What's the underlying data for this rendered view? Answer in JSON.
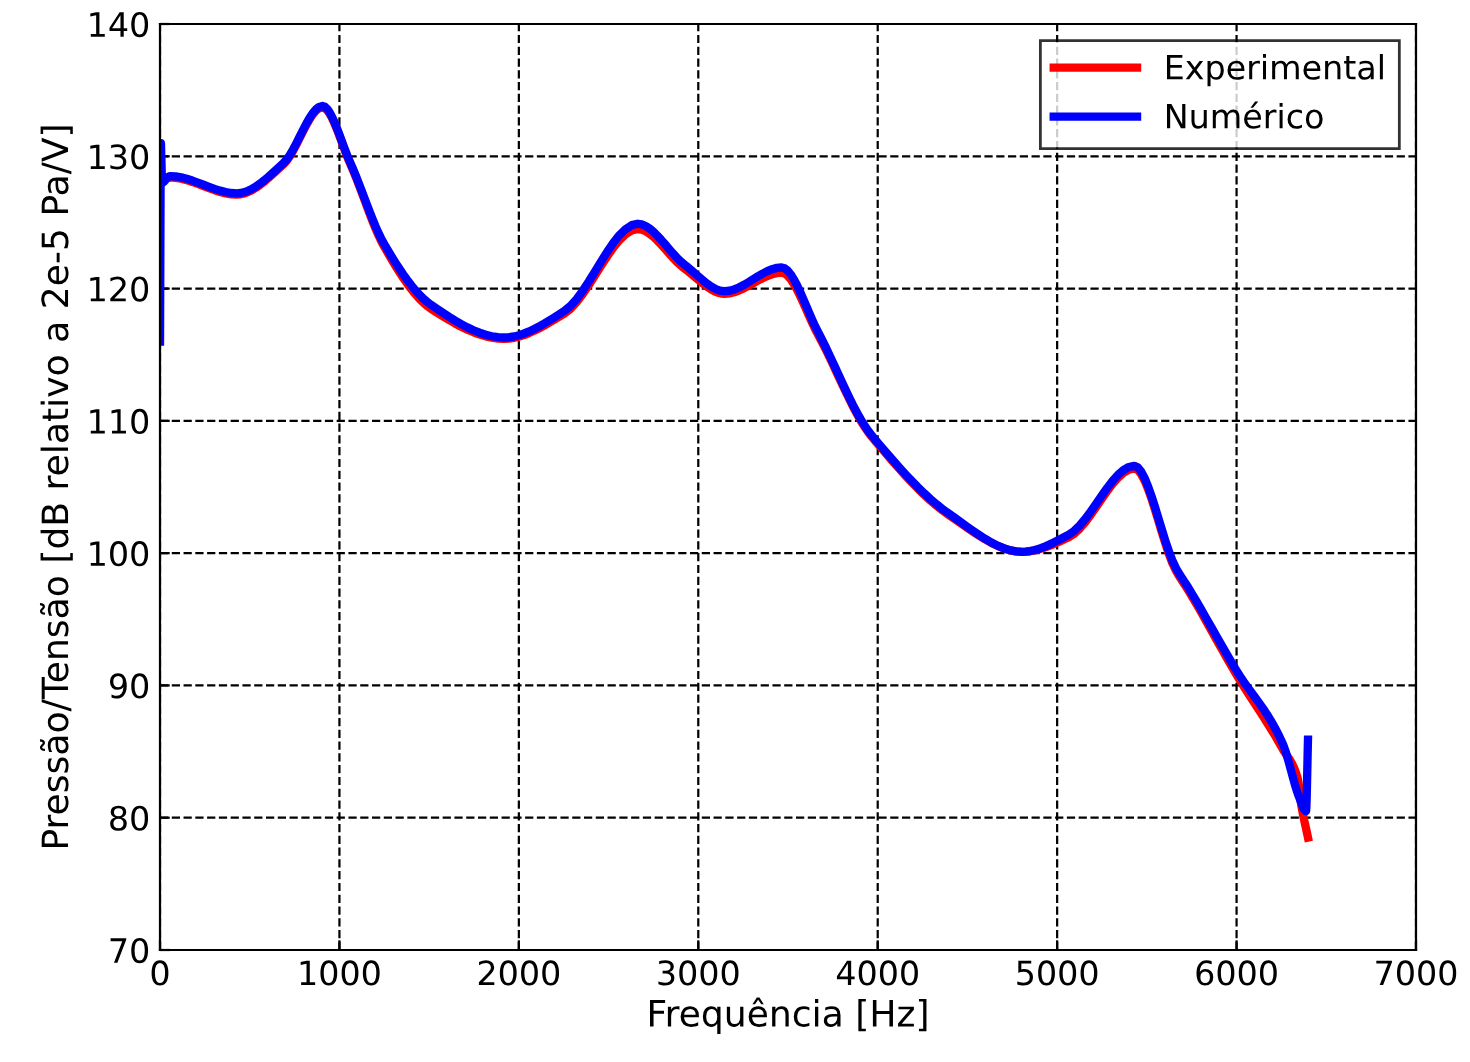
{
  "chart_data": {
    "type": "line",
    "xlabel": "Frequência [Hz]",
    "ylabel": "Pressão/Tensão [dB relativo a 2e-5 Pa/V]",
    "xlim": [
      0,
      7000
    ],
    "ylim": [
      70,
      140
    ],
    "xticks": [
      0,
      1000,
      2000,
      3000,
      4000,
      5000,
      6000,
      7000
    ],
    "yticks": [
      70,
      80,
      90,
      100,
      110,
      120,
      130,
      140
    ],
    "grid": true,
    "legend": "top right",
    "marker": "none",
    "series": [
      {
        "name": "Experimental",
        "color": "#ff0000",
        "x": [
          0,
          5,
          10,
          56,
          428,
          689,
          905,
          1061,
          1248,
          1508,
          1918,
          2253,
          2663,
          2924,
          3147,
          3464,
          3668,
          3929,
          3985,
          4395,
          4804,
          5065,
          5430,
          5661,
          5735,
          5996,
          6257,
          6340,
          6360,
          6398
        ],
        "values": [
          128,
          130,
          128.3,
          128.4,
          127.1,
          129.4,
          133.7,
          129.4,
          123.2,
          118.5,
          116.2,
          118.1,
          124.5,
          121.5,
          119.6,
          121.2,
          116.5,
          109.5,
          108.5,
          102.9,
          100.1,
          101.2,
          106.4,
          98.7,
          97.1,
          90.9,
          85.2,
          83,
          81,
          78.5
        ]
      },
      {
        "name": "Numérico",
        "color": "#0000ff",
        "x": [
          0,
          5,
          10,
          56,
          428,
          689,
          905,
          1061,
          1248,
          1508,
          1918,
          2253,
          2663,
          2924,
          3147,
          3464,
          3668,
          3929,
          3985,
          4395,
          4804,
          5065,
          5430,
          5661,
          5735,
          5996,
          6257,
          6350,
          6387,
          6398
        ],
        "values": [
          116,
          131,
          128,
          128.5,
          127.2,
          129.5,
          133.8,
          129.5,
          123.4,
          118.8,
          116.3,
          118.3,
          124.9,
          121.8,
          119.8,
          121.6,
          116.7,
          109.6,
          108.6,
          103,
          100.1,
          101.4,
          106.6,
          98.9,
          97.3,
          91.2,
          85.6,
          81.5,
          80.5,
          85.9
        ]
      }
    ]
  }
}
